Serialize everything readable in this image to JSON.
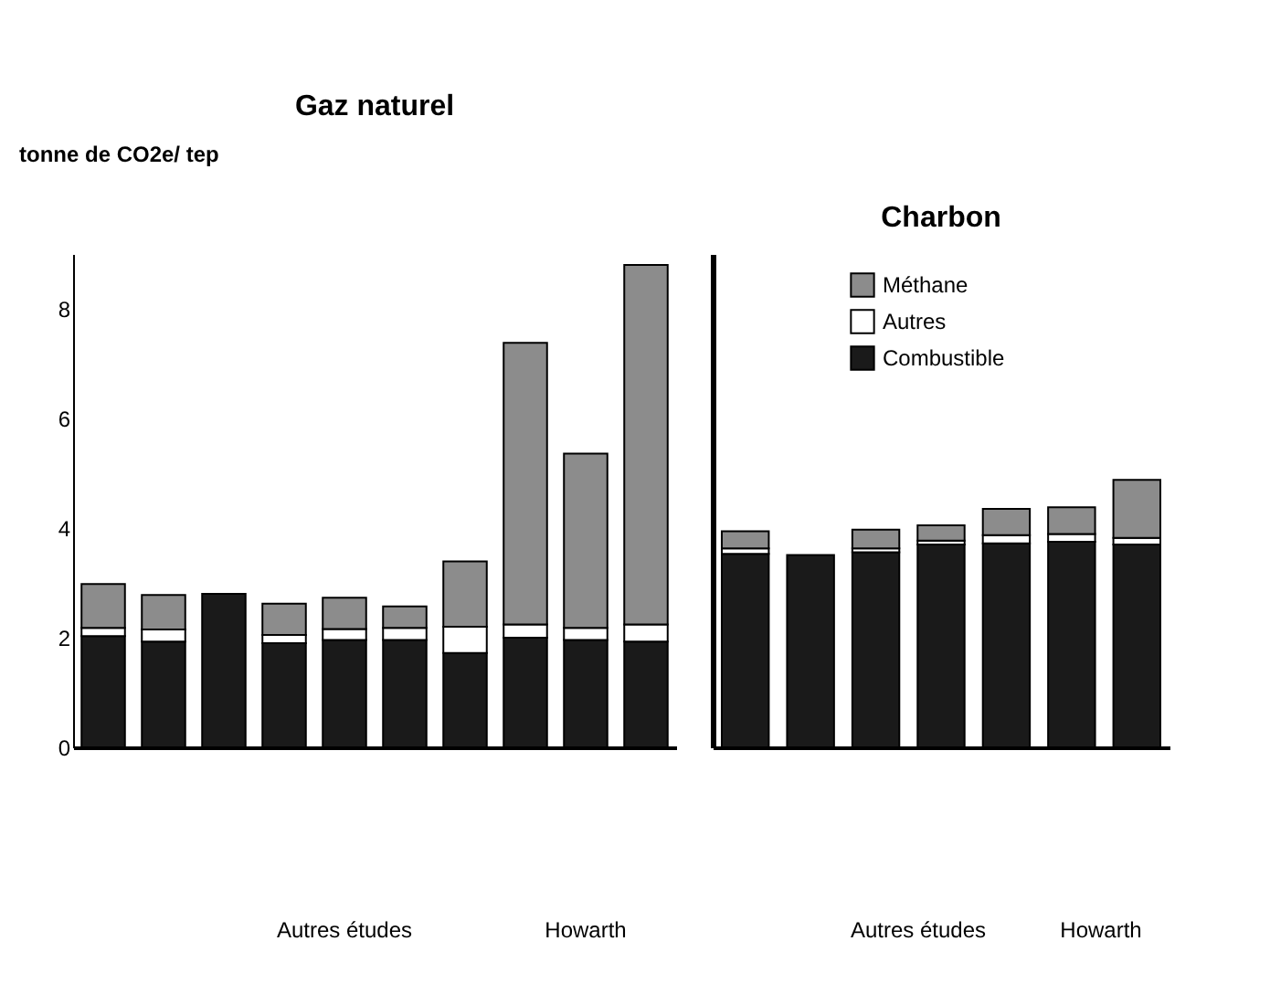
{
  "chart_data": [
    {
      "type": "bar",
      "title": "Gaz naturel",
      "ylabel": "tonne de CO2e/ tep",
      "stacked": true,
      "categories": [
        null,
        null,
        null,
        null,
        null,
        null,
        null,
        null,
        null,
        null
      ],
      "series": [
        {
          "color": "#1a1a1a",
          "values": [
            2.03,
            1.93,
            2.8,
            1.9,
            1.96,
            1.96,
            1.72,
            2.0,
            1.96,
            1.93
          ]
        },
        {
          "color": "#ffffff",
          "values": [
            0.15,
            0.22,
            0,
            0.15,
            0.2,
            0.22,
            0.48,
            0.24,
            0.22,
            0.31
          ]
        },
        {
          "color": "#8c8c8c",
          "values": [
            0.8,
            0.63,
            0,
            0.57,
            0.57,
            0.39,
            1.19,
            5.14,
            3.18,
            6.56
          ]
        }
      ],
      "ylim": [
        0,
        9
      ],
      "yticks": [
        0,
        2,
        4,
        6,
        8
      ],
      "grid": false,
      "legend": false,
      "tick_labels": "y",
      "annotations": [
        "Autres études",
        "Howarth"
      ]
    },
    {
      "type": "bar",
      "title": "Charbon",
      "stacked": true,
      "categories": [
        null,
        null,
        null,
        null,
        null,
        null,
        null
      ],
      "series": [
        {
          "name": "Combustible",
          "color": "#1a1a1a",
          "values": [
            3.53,
            3.51,
            3.56,
            3.7,
            3.72,
            3.75,
            3.7
          ]
        },
        {
          "name": "Autres",
          "color": "#ffffff",
          "values": [
            0.1,
            0,
            0.07,
            0.07,
            0.15,
            0.14,
            0.12
          ]
        },
        {
          "name": "Méthane",
          "color": "#8c8c8c",
          "values": [
            0.31,
            0,
            0.34,
            0.28,
            0.48,
            0.49,
            1.06
          ]
        }
      ],
      "ylim": [
        0,
        9
      ],
      "grid": false,
      "legend": "top",
      "tick_labels": false,
      "annotations": [
        "Autres études",
        "Howarth"
      ]
    }
  ]
}
